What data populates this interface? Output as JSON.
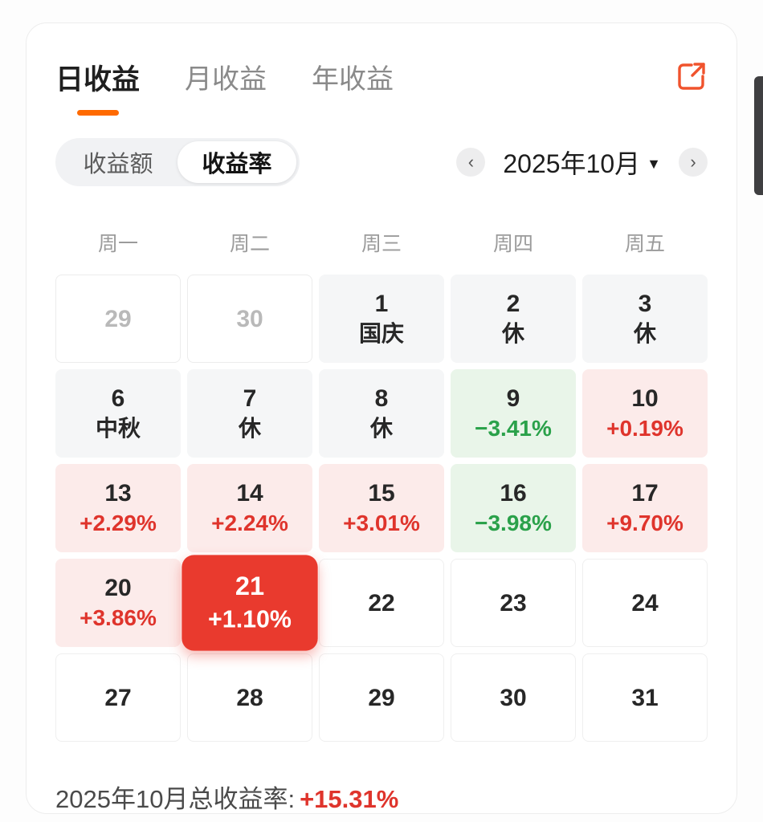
{
  "colors": {
    "accent_orange": "#ff6a00",
    "positive_red": "#df342c",
    "negative_green": "#2aa14a",
    "selected_bg": "#e93a2e"
  },
  "tabs": [
    {
      "label": "日收益",
      "active": true
    },
    {
      "label": "月收益",
      "active": false
    },
    {
      "label": "年收益",
      "active": false
    }
  ],
  "toggle": {
    "options": [
      {
        "label": "收益额",
        "selected": false
      },
      {
        "label": "收益率",
        "selected": true
      }
    ]
  },
  "month_nav": {
    "prev_icon": "‹",
    "label": "2025年10月",
    "caret": "▼",
    "next_icon": "›"
  },
  "weekday_headers": [
    "周一",
    "周二",
    "周三",
    "周四",
    "周五"
  ],
  "calendar": {
    "rows": [
      [
        {
          "day": "29",
          "type": "muted"
        },
        {
          "day": "30",
          "type": "muted"
        },
        {
          "day": "1",
          "type": "holiday",
          "note": "国庆"
        },
        {
          "day": "2",
          "type": "holiday",
          "note": "休"
        },
        {
          "day": "3",
          "type": "holiday",
          "note": "休"
        }
      ],
      [
        {
          "day": "6",
          "type": "holiday",
          "note": "中秋"
        },
        {
          "day": "7",
          "type": "holiday",
          "note": "休"
        },
        {
          "day": "8",
          "type": "holiday",
          "note": "休"
        },
        {
          "day": "9",
          "type": "loss",
          "value": "−3.41%"
        },
        {
          "day": "10",
          "type": "gain",
          "value": "+0.19%"
        }
      ],
      [
        {
          "day": "13",
          "type": "gain",
          "value": "+2.29%"
        },
        {
          "day": "14",
          "type": "gain",
          "value": "+2.24%"
        },
        {
          "day": "15",
          "type": "gain",
          "value": "+3.01%"
        },
        {
          "day": "16",
          "type": "loss",
          "value": "−3.98%"
        },
        {
          "day": "17",
          "type": "gain",
          "value": "+9.70%"
        }
      ],
      [
        {
          "day": "20",
          "type": "gain",
          "value": "+3.86%"
        },
        {
          "day": "21",
          "type": "selected",
          "value": "+1.10%"
        },
        {
          "day": "22",
          "type": "plain"
        },
        {
          "day": "23",
          "type": "plain"
        },
        {
          "day": "24",
          "type": "plain"
        }
      ],
      [
        {
          "day": "27",
          "type": "plain"
        },
        {
          "day": "28",
          "type": "plain"
        },
        {
          "day": "29",
          "type": "plain"
        },
        {
          "day": "30",
          "type": "plain"
        },
        {
          "day": "31",
          "type": "plain"
        }
      ]
    ]
  },
  "summary": {
    "label": "2025年10月总收益率:",
    "value": "+15.31%"
  }
}
